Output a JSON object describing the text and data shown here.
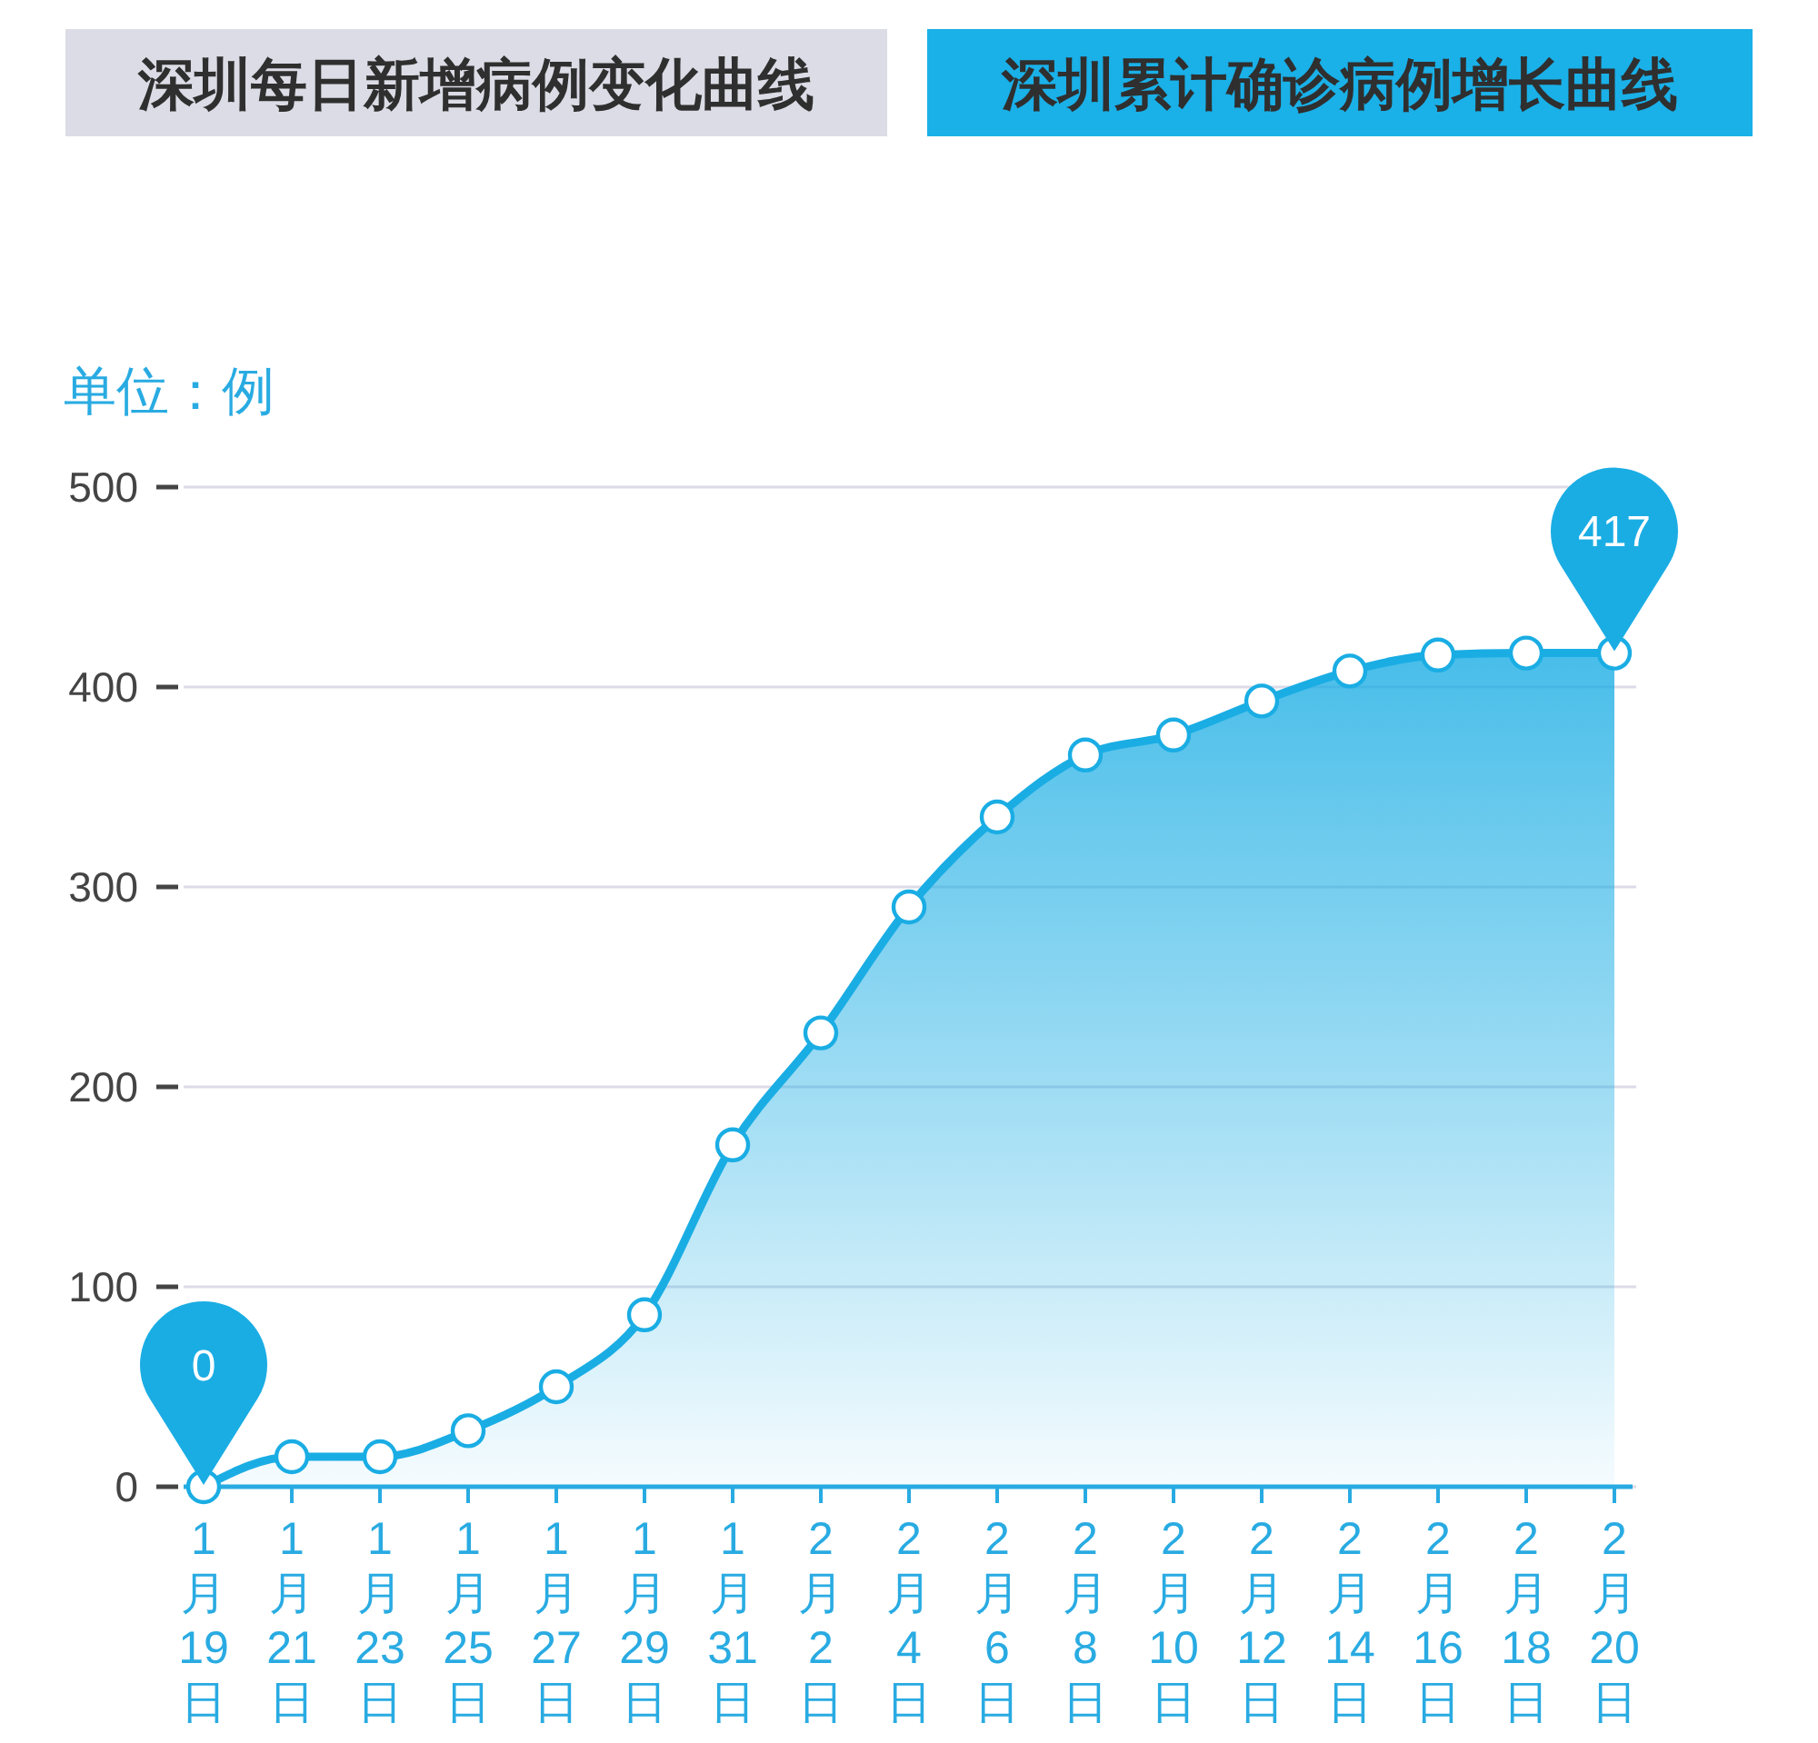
{
  "chart_data": {
    "type": "area",
    "title": "深圳累计确诊病例增长曲线",
    "annotations": [
      "深圳每日新增病例变化曲线"
    ],
    "ylabel": "单位：例",
    "categories": [
      "1月19日",
      "1月21日",
      "1月23日",
      "1月25日",
      "1月27日",
      "1月29日",
      "1月31日",
      "2月2日",
      "2月4日",
      "2月6日",
      "2月8日",
      "2月10日",
      "2月12日",
      "2月14日",
      "2月16日",
      "2月18日",
      "2月20日"
    ],
    "series": [
      {
        "color": "#1aade4",
        "values": [
          0,
          15,
          15,
          28,
          50,
          86,
          171,
          227,
          290,
          335,
          366,
          376,
          393,
          408,
          416,
          417,
          417
        ],
        "value_labels": [
          "0",
          null,
          null,
          null,
          null,
          null,
          null,
          null,
          null,
          null,
          null,
          null,
          null,
          null,
          null,
          null,
          "417"
        ]
      }
    ],
    "ylim": [
      0,
      500
    ],
    "yticks": [
      0,
      100,
      200,
      300,
      400,
      500
    ],
    "grid": "y",
    "marker": "circle"
  }
}
